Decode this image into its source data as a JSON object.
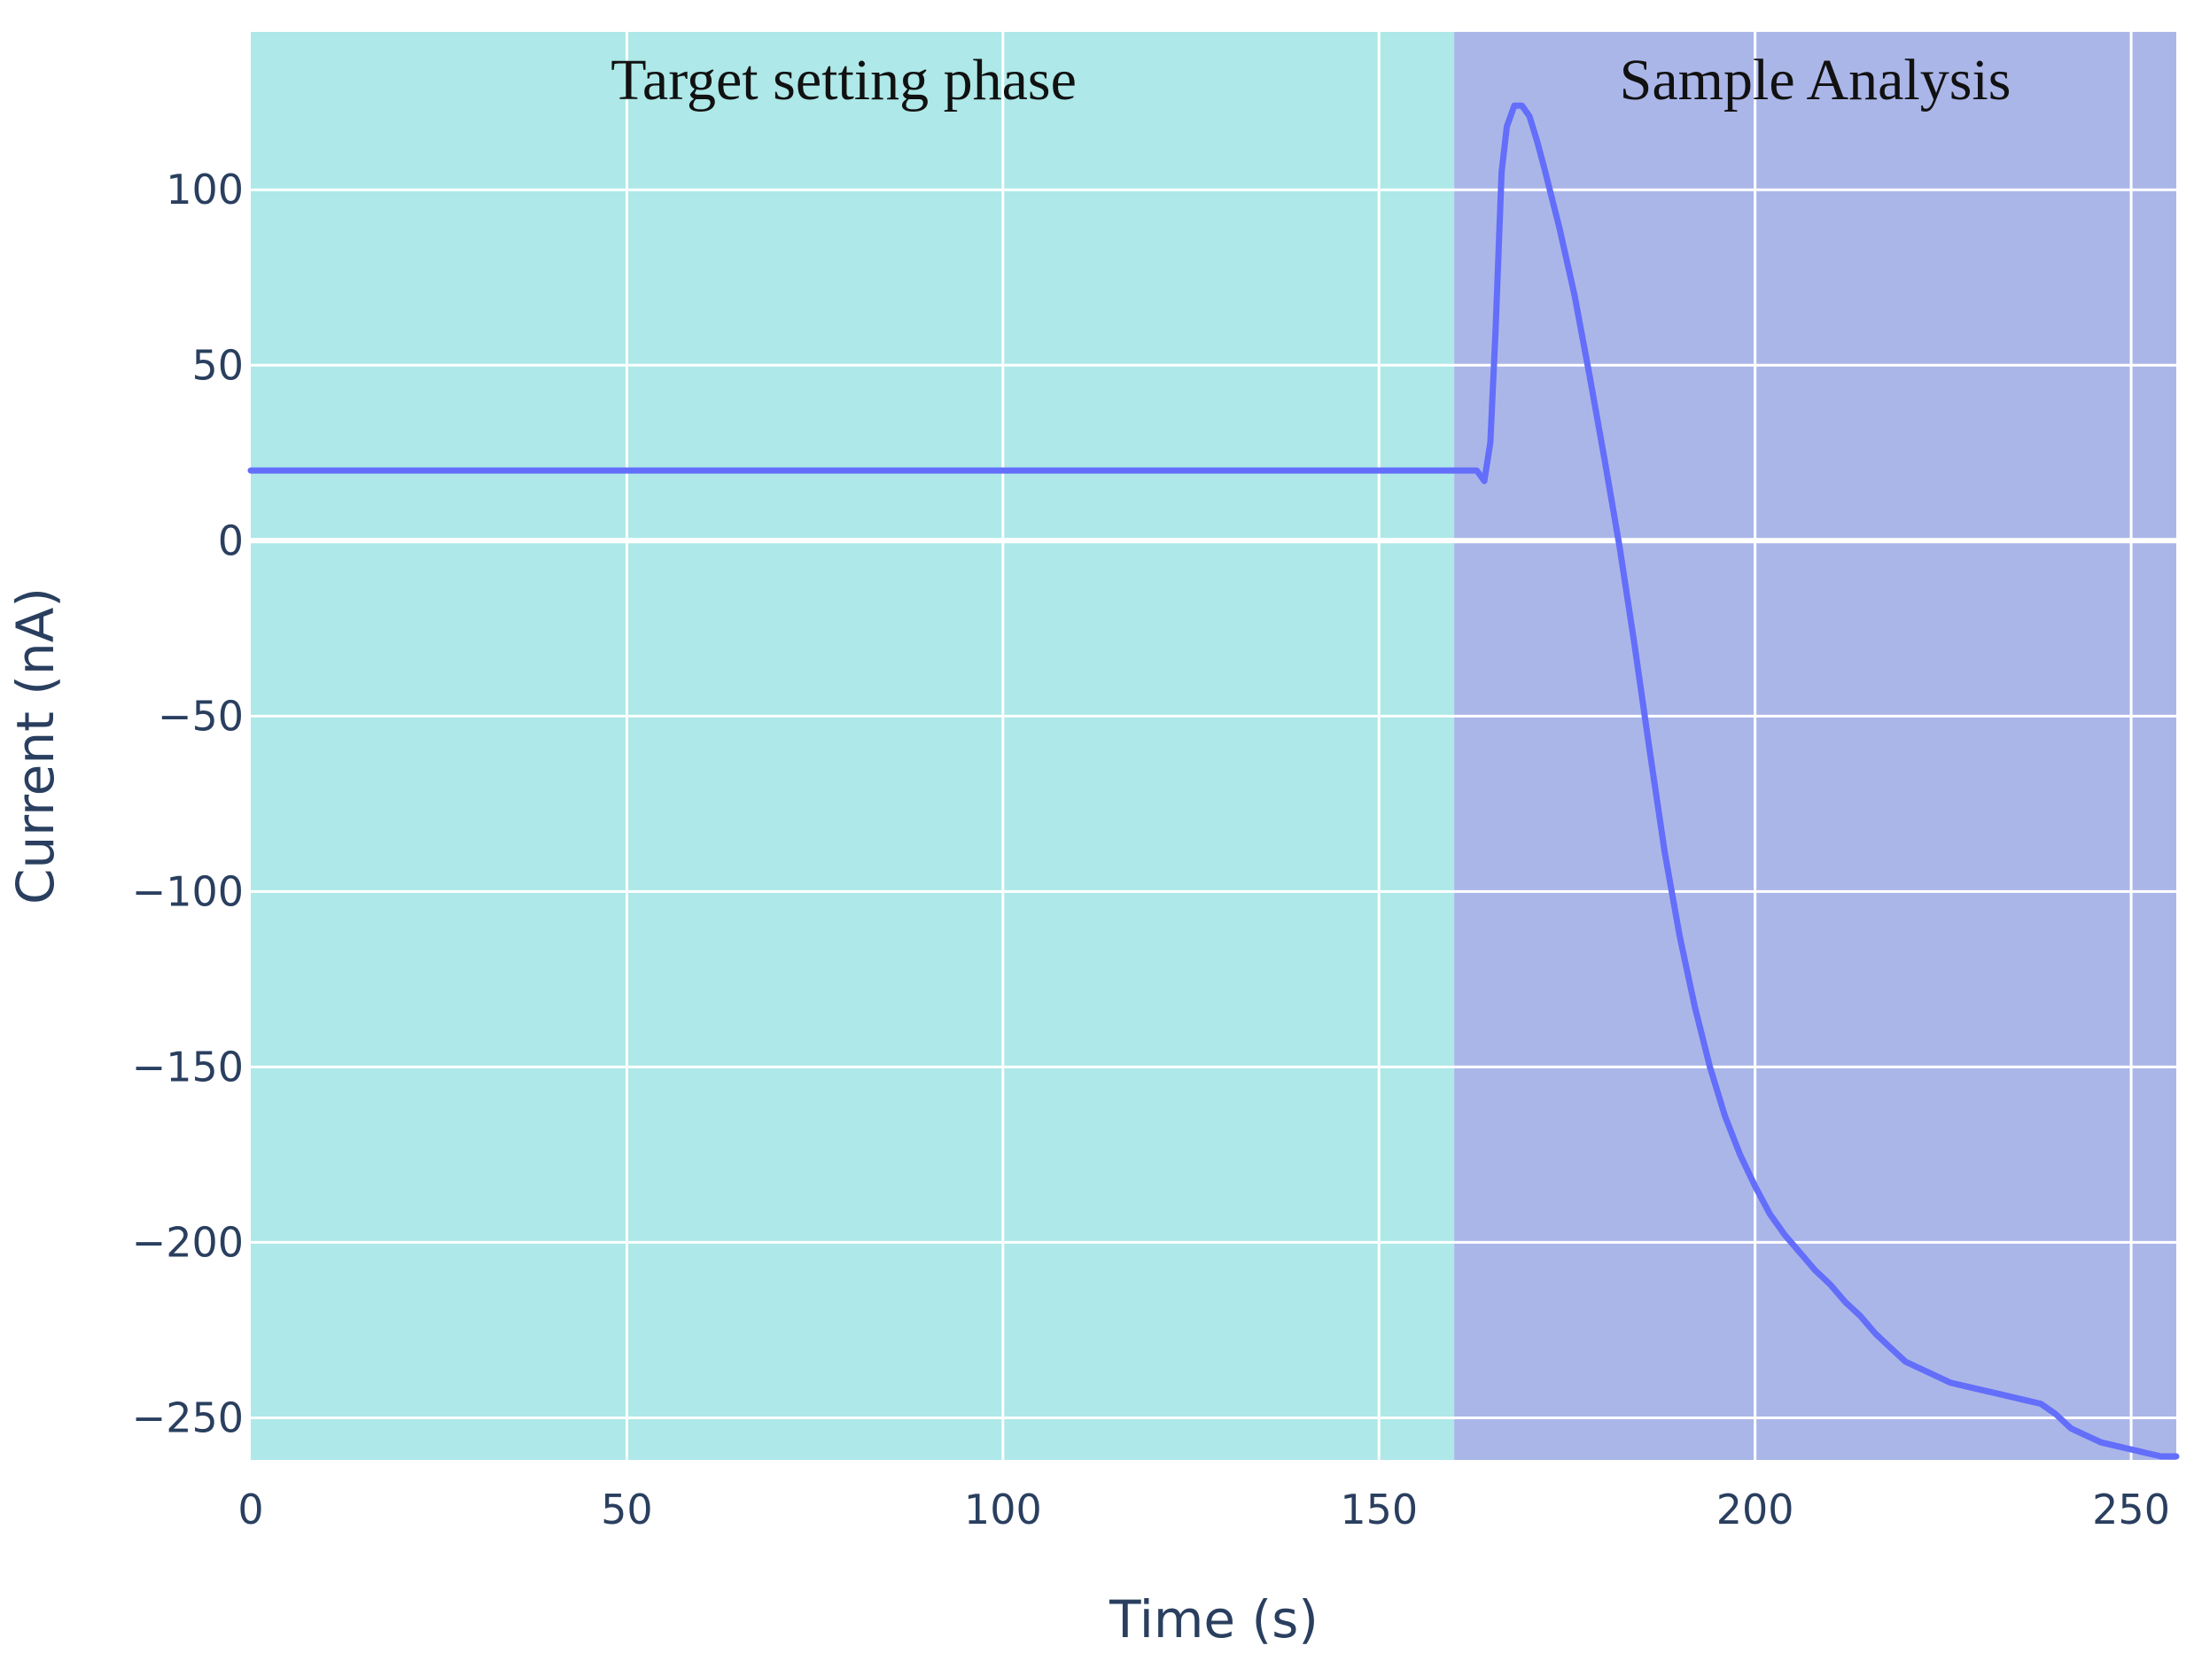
{
  "chart_data": {
    "type": "line",
    "xlabel": "Time (s)",
    "ylabel": "Current (nA)",
    "xlim": [
      0,
      256
    ],
    "ylim": [
      -262,
      145
    ],
    "x_ticks": [
      0,
      50,
      100,
      150,
      200,
      250
    ],
    "x_tick_labels": [
      "0",
      "50",
      "100",
      "150",
      "200",
      "250"
    ],
    "y_ticks": [
      100,
      50,
      0,
      -50,
      -100,
      -150,
      -200,
      -250
    ],
    "y_tick_labels": [
      "100",
      "50",
      "0",
      "−50",
      "−100",
      "−150",
      "−200",
      "−250"
    ],
    "grid": true,
    "regions": [
      {
        "label": "Target setting phase",
        "x_start": 0,
        "x_end": 160,
        "color": "#aee8e8"
      },
      {
        "label": "Sample Analysis",
        "x_start": 160,
        "x_end": 256,
        "color": "#abb6e8"
      }
    ],
    "series": [
      {
        "color": "#636efa",
        "x": [
          0,
          160,
          163,
          164,
          164.8,
          165.5,
          166.3,
          167,
          168,
          169,
          170,
          171,
          172,
          174,
          176,
          178,
          180,
          182,
          184,
          186,
          188,
          190,
          192,
          194,
          196,
          198,
          200,
          202,
          204,
          206,
          208,
          210,
          212,
          214,
          216,
          218,
          220,
          222,
          224,
          226,
          228,
          230,
          232,
          234,
          236,
          238,
          240,
          242,
          244,
          246,
          248,
          250,
          252,
          254,
          256
        ],
        "y": [
          20,
          20,
          20,
          17,
          28,
          60,
          105,
          118,
          124,
          124,
          121,
          114,
          106,
          89,
          70,
          47,
          23,
          -2,
          -30,
          -60,
          -89,
          -113,
          -133,
          -150,
          -164,
          -175,
          -184,
          -192,
          -198,
          -203,
          -208,
          -212,
          -217,
          -221,
          -226,
          -230,
          -234,
          -236,
          -238,
          -240,
          -241,
          -242,
          -243,
          -244,
          -245,
          -246,
          -249,
          -253,
          -255,
          -257,
          -258,
          -259,
          -260,
          -261,
          -261
        ]
      }
    ]
  }
}
